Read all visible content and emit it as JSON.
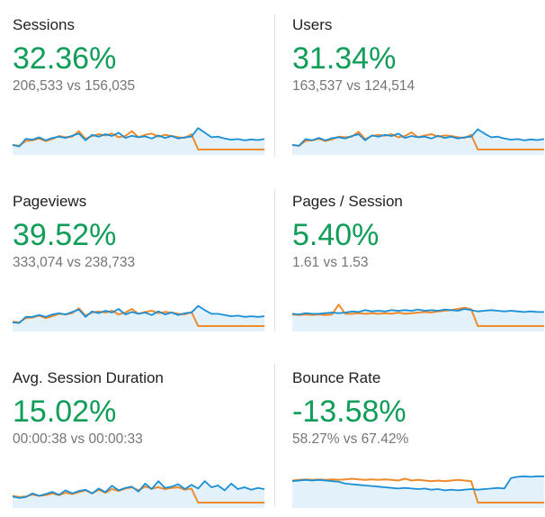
{
  "colors": {
    "positive_change": "#0f9d58",
    "current_series": "#1a8fd6",
    "previous_series": "#ef8b2c",
    "current_fill": "#e3f1fb"
  },
  "metrics": [
    {
      "name": "Sessions",
      "change": "32.36%",
      "comparison": "206,533 vs 156,035",
      "sparkline": {
        "current": [
          0.15,
          0.1,
          0.35,
          0.32,
          0.4,
          0.3,
          0.38,
          0.42,
          0.38,
          0.45,
          0.52,
          0.3,
          0.48,
          0.42,
          0.5,
          0.44,
          0.55,
          0.38,
          0.45,
          0.4,
          0.43,
          0.36,
          0.46,
          0.38,
          0.44,
          0.36,
          0.4,
          0.42,
          0.7,
          0.55,
          0.4,
          0.42,
          0.36,
          0.32,
          0.34,
          0.3,
          0.33,
          0.31,
          0.34
        ],
        "previous": [
          0.15,
          0.12,
          0.28,
          0.3,
          0.36,
          0.28,
          0.34,
          0.44,
          0.4,
          0.42,
          0.6,
          0.35,
          0.44,
          0.5,
          0.46,
          0.52,
          0.4,
          0.44,
          0.6,
          0.4,
          0.48,
          0.52,
          0.42,
          0.48,
          0.44,
          0.4,
          0.38,
          0.5,
          0.0,
          0.0,
          0.0,
          0.0,
          0.0,
          0.0,
          0.0,
          0.0,
          0.0,
          0.0,
          0.0
        ]
      }
    },
    {
      "name": "Users",
      "change": "31.34%",
      "comparison": "163,537 vs 124,514",
      "sparkline": {
        "current": [
          0.15,
          0.12,
          0.34,
          0.3,
          0.38,
          0.3,
          0.37,
          0.4,
          0.36,
          0.44,
          0.5,
          0.3,
          0.46,
          0.42,
          0.48,
          0.44,
          0.52,
          0.38,
          0.44,
          0.4,
          0.42,
          0.36,
          0.45,
          0.38,
          0.42,
          0.36,
          0.4,
          0.42,
          0.66,
          0.52,
          0.4,
          0.42,
          0.36,
          0.32,
          0.34,
          0.3,
          0.33,
          0.31,
          0.34
        ],
        "previous": [
          0.15,
          0.12,
          0.28,
          0.3,
          0.35,
          0.28,
          0.33,
          0.42,
          0.4,
          0.42,
          0.58,
          0.34,
          0.44,
          0.48,
          0.45,
          0.5,
          0.4,
          0.44,
          0.56,
          0.4,
          0.46,
          0.5,
          0.42,
          0.46,
          0.44,
          0.4,
          0.38,
          0.48,
          0.0,
          0.0,
          0.0,
          0.0,
          0.0,
          0.0,
          0.0,
          0.0,
          0.0,
          0.0,
          0.0
        ]
      }
    },
    {
      "name": "Pageviews",
      "change": "39.52%",
      "comparison": "333,074 vs 238,733",
      "sparkline": {
        "current": [
          0.12,
          0.1,
          0.3,
          0.3,
          0.36,
          0.3,
          0.38,
          0.42,
          0.38,
          0.46,
          0.54,
          0.3,
          0.48,
          0.42,
          0.5,
          0.44,
          0.56,
          0.38,
          0.46,
          0.4,
          0.44,
          0.36,
          0.48,
          0.38,
          0.44,
          0.36,
          0.42,
          0.44,
          0.66,
          0.52,
          0.4,
          0.4,
          0.36,
          0.32,
          0.34,
          0.3,
          0.32,
          0.3,
          0.32
        ],
        "previous": [
          0.14,
          0.12,
          0.26,
          0.28,
          0.34,
          0.26,
          0.32,
          0.4,
          0.38,
          0.42,
          0.58,
          0.34,
          0.44,
          0.48,
          0.44,
          0.5,
          0.38,
          0.44,
          0.56,
          0.4,
          0.46,
          0.5,
          0.42,
          0.46,
          0.44,
          0.4,
          0.38,
          0.46,
          0.0,
          0.0,
          0.0,
          0.0,
          0.0,
          0.0,
          0.0,
          0.0,
          0.0,
          0.0,
          0.0
        ]
      }
    },
    {
      "name": "Pages / Session",
      "change": "5.40%",
      "comparison": "1.61 vs 1.53",
      "sparkline": {
        "current": [
          0.4,
          0.38,
          0.42,
          0.4,
          0.4,
          0.42,
          0.44,
          0.42,
          0.44,
          0.48,
          0.46,
          0.52,
          0.48,
          0.5,
          0.48,
          0.52,
          0.5,
          0.52,
          0.5,
          0.54,
          0.5,
          0.52,
          0.5,
          0.54,
          0.52,
          0.5,
          0.56,
          0.52,
          0.48,
          0.5,
          0.52,
          0.5,
          0.48,
          0.5,
          0.48,
          0.46,
          0.48,
          0.46,
          0.46
        ],
        "previous": [
          0.38,
          0.36,
          0.38,
          0.36,
          0.38,
          0.36,
          0.38,
          0.7,
          0.4,
          0.4,
          0.42,
          0.4,
          0.42,
          0.4,
          0.42,
          0.4,
          0.44,
          0.4,
          0.42,
          0.44,
          0.46,
          0.44,
          0.48,
          0.5,
          0.52,
          0.56,
          0.6,
          0.55,
          0.0,
          0.0,
          0.0,
          0.0,
          0.0,
          0.0,
          0.0,
          0.0,
          0.0,
          0.0,
          0.0
        ]
      }
    },
    {
      "name": "Avg. Session Duration",
      "change": "15.02%",
      "comparison": "00:00:38 vs 00:00:33",
      "sparkline": {
        "current": [
          0.2,
          0.15,
          0.18,
          0.3,
          0.22,
          0.28,
          0.35,
          0.25,
          0.4,
          0.3,
          0.38,
          0.42,
          0.3,
          0.46,
          0.34,
          0.55,
          0.4,
          0.48,
          0.52,
          0.36,
          0.62,
          0.44,
          0.7,
          0.48,
          0.52,
          0.6,
          0.44,
          0.58,
          0.46,
          0.7,
          0.5,
          0.56,
          0.4,
          0.62,
          0.44,
          0.5,
          0.42,
          0.48,
          0.44
        ],
        "previous": [
          0.22,
          0.18,
          0.2,
          0.26,
          0.22,
          0.24,
          0.3,
          0.24,
          0.32,
          0.28,
          0.34,
          0.4,
          0.3,
          0.42,
          0.32,
          0.44,
          0.38,
          0.46,
          0.5,
          0.4,
          0.52,
          0.46,
          0.5,
          0.44,
          0.48,
          0.5,
          0.42,
          0.46,
          0.0,
          0.0,
          0.0,
          0.0,
          0.0,
          0.0,
          0.0,
          0.0,
          0.0,
          0.0,
          0.0
        ]
      }
    },
    {
      "name": "Bounce Rate",
      "change": "-13.58%",
      "comparison": "58.27% vs 67.42%",
      "sparkline": {
        "current": [
          0.7,
          0.72,
          0.74,
          0.72,
          0.74,
          0.72,
          0.7,
          0.68,
          0.62,
          0.6,
          0.58,
          0.56,
          0.54,
          0.52,
          0.5,
          0.48,
          0.46,
          0.48,
          0.46,
          0.44,
          0.46,
          0.42,
          0.44,
          0.4,
          0.42,
          0.4,
          0.42,
          0.44,
          0.42,
          0.44,
          0.46,
          0.48,
          0.46,
          0.8,
          0.84,
          0.86,
          0.84,
          0.86,
          0.86
        ],
        "previous": [
          0.72,
          0.74,
          0.76,
          0.74,
          0.76,
          0.74,
          0.76,
          0.74,
          0.76,
          0.78,
          0.76,
          0.74,
          0.76,
          0.74,
          0.76,
          0.74,
          0.72,
          0.78,
          0.72,
          0.74,
          0.72,
          0.7,
          0.72,
          0.7,
          0.72,
          0.74,
          0.72,
          0.7,
          0.0,
          0.0,
          0.0,
          0.0,
          0.0,
          0.0,
          0.0,
          0.0,
          0.0,
          0.0,
          0.0
        ]
      }
    }
  ]
}
